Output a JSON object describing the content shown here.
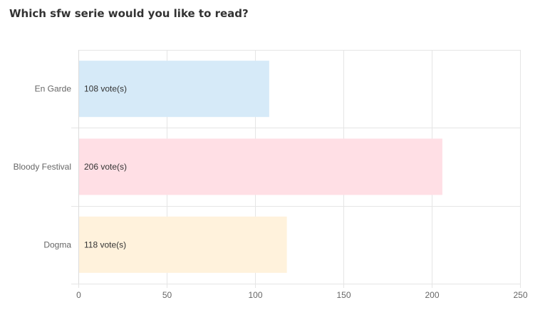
{
  "poll": {
    "title": "Which sfw serie would you like to read?"
  },
  "chart_data": {
    "type": "bar",
    "orientation": "horizontal",
    "categories": [
      "En Garde",
      "Bloody Festival",
      "Dogma"
    ],
    "values": [
      108,
      206,
      118
    ],
    "bar_labels": [
      "108 vote(s)",
      "206 vote(s)",
      "118 vote(s)"
    ],
    "xlim": [
      0,
      250
    ],
    "x_ticks": [
      0,
      50,
      100,
      150,
      200,
      250
    ],
    "grid": true,
    "colors": {
      "fills": [
        "#d6eaf8",
        "#ffdfe5",
        "#fff2dc"
      ],
      "strokes": [
        "#8fc3ec",
        "#f3a6b7",
        "#f5d39a"
      ],
      "grid": "#e5e5e5"
    }
  }
}
